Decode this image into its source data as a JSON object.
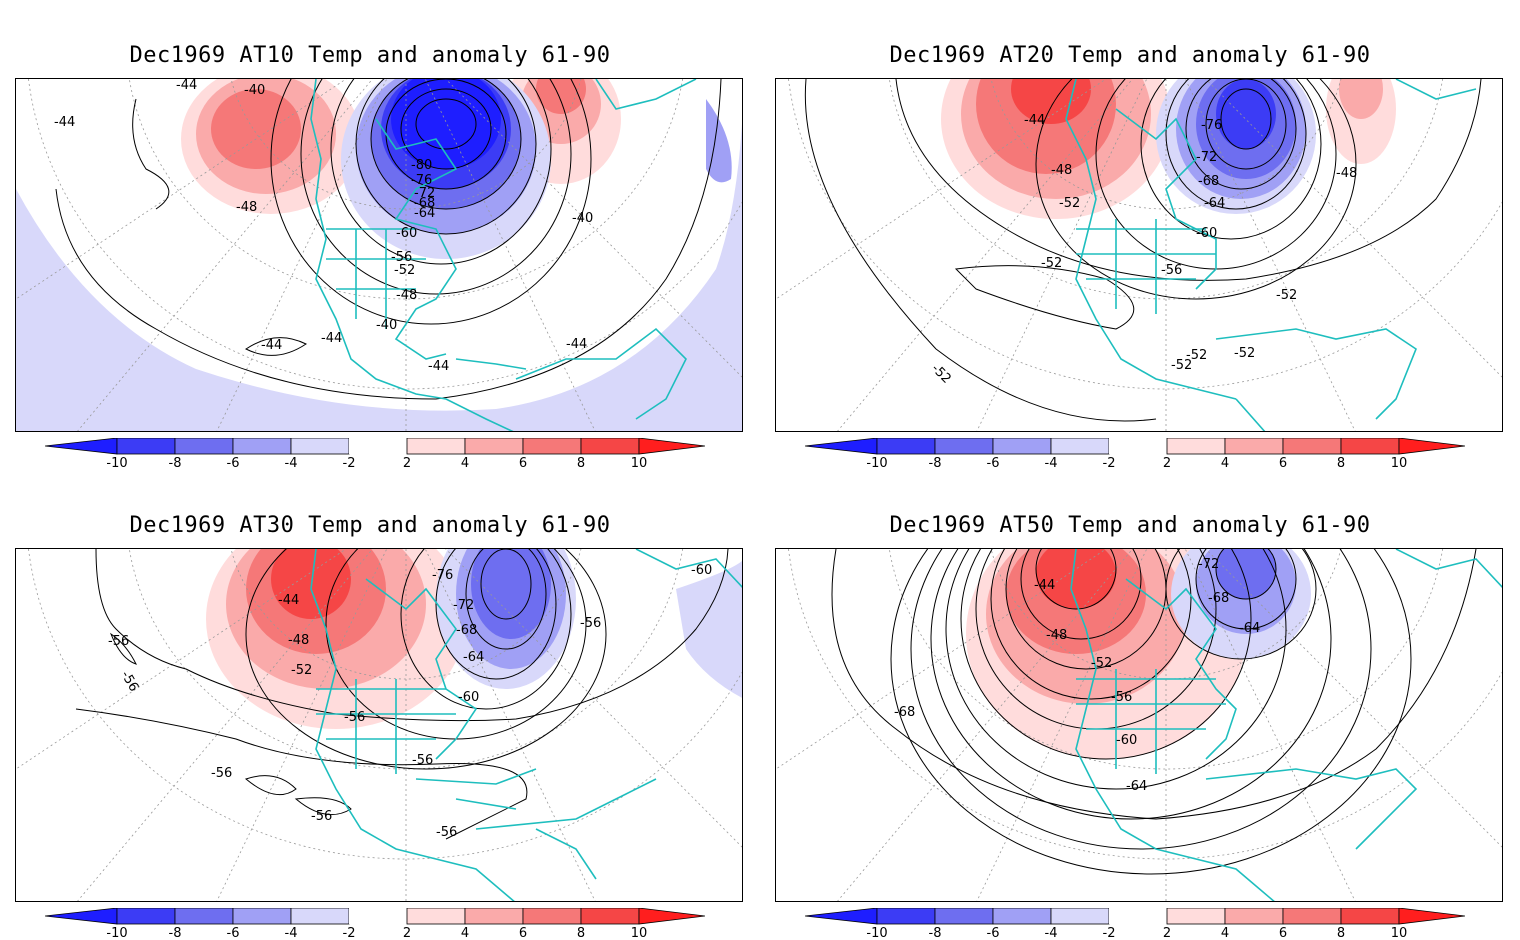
{
  "panels": [
    {
      "title": "Dec1969 AT10 Temp and anomaly 61-90",
      "contour_labels": [
        "-40",
        "-44",
        "-44",
        "-48",
        "-80",
        "-76",
        "-72",
        "-68",
        "-64",
        "-60",
        "-56",
        "-52",
        "-48",
        "-40",
        "-40",
        "-44",
        "-44",
        "-44",
        "-44"
      ]
    },
    {
      "title": "Dec1969 AT20 Temp and anomaly 61-90",
      "contour_labels": [
        "-44",
        "-48",
        "-52",
        "-76",
        "-72",
        "-68",
        "-64",
        "-60",
        "-56",
        "-52",
        "-52",
        "-52",
        "-52",
        "-52",
        "-52",
        "-48"
      ]
    },
    {
      "title": "Dec1969 AT30 Temp and anomaly 61-90",
      "contour_labels": [
        "-44",
        "-48",
        "-52",
        "-56",
        "-76",
        "-72",
        "-68",
        "-64",
        "-60",
        "-56",
        "-56",
        "-56",
        "-56",
        "-56",
        "-56",
        "-56",
        "-60"
      ]
    },
    {
      "title": "Dec1969 AT50 Temp and anomaly 61-90",
      "contour_labels": [
        "-44",
        "-48",
        "-52",
        "-56",
        "-72",
        "-68",
        "-64",
        "-60",
        "-64",
        "-68"
      ]
    }
  ],
  "colorbar": {
    "labels": [
      "-10",
      "-8",
      "-6",
      "-4",
      "-2",
      "2",
      "4",
      "6",
      "8",
      "10"
    ],
    "colors": [
      "#1e1eff",
      "#3c3cf5",
      "#6e6ef0",
      "#a0a0f5",
      "#d8d8fa",
      "#ffffff",
      "#ffdcdc",
      "#faaaaa",
      "#f57878",
      "#f54646",
      "#ff1e1e"
    ]
  },
  "colors": {
    "coast": "#1ebebe",
    "contour": "#000000",
    "grid": "#999999"
  }
}
